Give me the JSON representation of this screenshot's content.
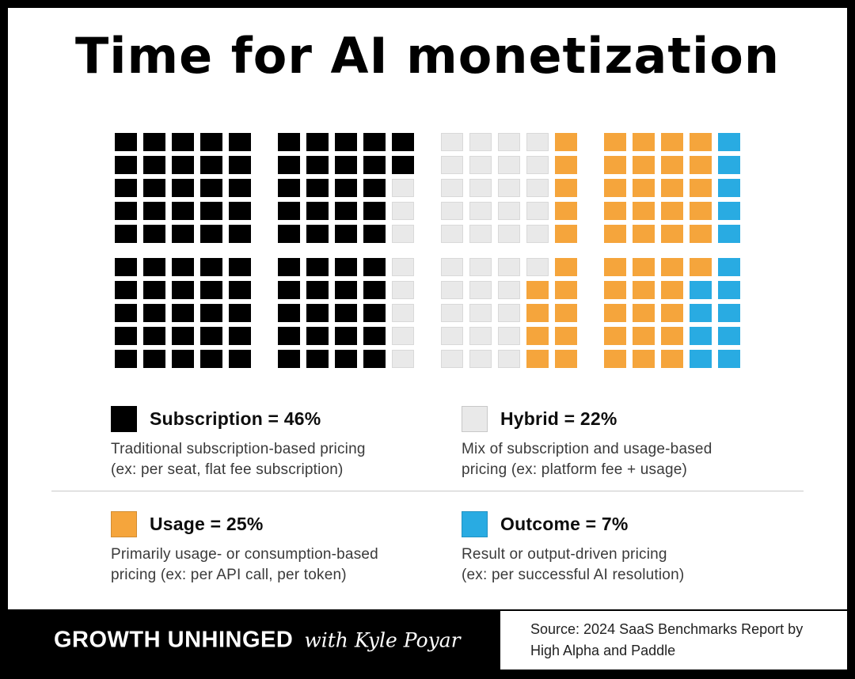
{
  "page": {
    "title": "Time for AI monetization"
  },
  "chart_data": {
    "type": "heatmap",
    "variant": "waffle",
    "title": "Time for AI monetization",
    "total_squares": 200,
    "unit_percent_per_square": 0.5,
    "grid": {
      "rows": 10,
      "cols": 20,
      "block_size": 5,
      "cells": [
        "KKKKKKKKKKGGGGOOOOOB",
        "KKKKKKKKKKGGGGOOOOOB",
        "KKKKKKKKKGGGGGOOOOOB",
        "KKKKKKKKKGGGGGOOOOOB",
        "KKKKKKKKKGGGGGOOOOOB",
        "KKKKKKKKKGGGGGOOOOOB",
        "KKKKKKKKKGGGGOOOOOBB",
        "KKKKKKKKKGGGGOOOOOBB",
        "KKKKKKKKKGGGGOOOOOBB",
        "KKKKKKKKKGGGGOOOOOBB"
      ]
    },
    "color_map": {
      "K": "#000000",
      "G": "#E9E9E9",
      "O": "#F5A53C",
      "B": "#29ABE2"
    },
    "segments": [
      {
        "key": "K",
        "label": "Subscription",
        "percent": 46,
        "color": "#000000"
      },
      {
        "key": "G",
        "label": "Hybrid",
        "percent": 22,
        "color": "#E9E9E9"
      },
      {
        "key": "O",
        "label": "Usage",
        "percent": 25,
        "color": "#F5A53C"
      },
      {
        "key": "B",
        "label": "Outcome",
        "percent": 7,
        "color": "#29ABE2"
      }
    ],
    "legend_position": "below",
    "grid_lines": false
  },
  "legend": {
    "items": [
      {
        "title": "Subscription = 46%",
        "desc": "Traditional subscription-based pricing\n(ex: per seat, flat fee subscription)",
        "color": "#000000"
      },
      {
        "title": "Hybrid = 22%",
        "desc": "Mix of subscription and usage-based\npricing (ex: platform fee + usage)",
        "color": "#E9E9E9"
      },
      {
        "title": "Usage = 25%",
        "desc": "Primarily usage- or consumption-based\npricing (ex: per API call, per token)",
        "color": "#F5A53C"
      },
      {
        "title": "Outcome = 7%",
        "desc": "Result or output-driven pricing\n(ex: per successful AI resolution)",
        "color": "#29ABE2"
      }
    ]
  },
  "footer": {
    "brand_bold": "GROWTH UNHINGED",
    "brand_script": "with Kyle Poyar",
    "source": "Source: 2024 SaaS Benchmarks Report by\nHigh Alpha and Paddle"
  }
}
